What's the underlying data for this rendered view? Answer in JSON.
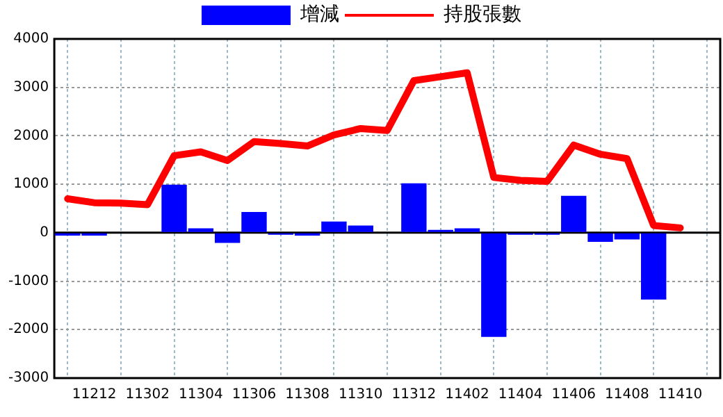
{
  "chart_data": {
    "type": "bar",
    "categories": [
      null,
      "11212",
      null,
      "11302",
      null,
      "11304",
      null,
      "11306",
      null,
      "11308",
      null,
      "11310",
      null,
      "11312",
      null,
      "11402",
      null,
      "11404",
      null,
      "11406",
      null,
      "11408",
      null,
      "11410",
      null
    ],
    "series": [
      {
        "name": "增減",
        "color": "#0000ff",
        "values": [
          -60,
          -60,
          0,
          0,
          990,
          90,
          -210,
          430,
          -40,
          -60,
          230,
          150,
          0,
          1020,
          60,
          90,
          -2150,
          -40,
          -40,
          760,
          -190,
          -140,
          -1380,
          0,
          null
        ]
      },
      {
        "name": "持股張數",
        "type": "line",
        "color": "#ff0000",
        "values": [
          700,
          620,
          610,
          580,
          1590,
          1670,
          1490,
          1880,
          1840,
          1790,
          2020,
          2150,
          2110,
          3140,
          3220,
          3300,
          1140,
          1080,
          1060,
          1810,
          1620,
          1530,
          150,
          100,
          null
        ]
      }
    ],
    "ylim": [
      -3000,
      4000
    ],
    "yticks": [
      -3000,
      -2000,
      -1000,
      0,
      1000,
      2000,
      3000,
      4000
    ],
    "grid": true,
    "legend": "top",
    "marker": "none",
    "line_style": "solid"
  }
}
